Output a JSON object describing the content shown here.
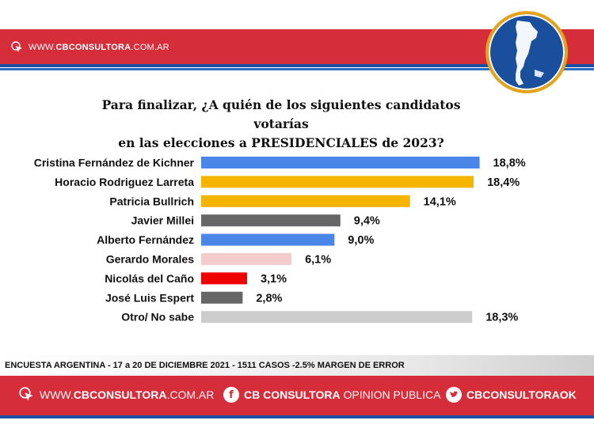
{
  "header": {
    "site_prefix": "WWW.",
    "site_bold": "CBCONSULTORA",
    "site_suffix": ".COM.AR"
  },
  "title": {
    "line1": "Para finalizar, ¿A quién de los siguientes candidatos votarías",
    "line2": "en las elecciones a PRESIDENCIALES  de 2023?"
  },
  "chart_data": {
    "type": "bar",
    "orientation": "horizontal",
    "categories": [
      "Cristina Fernández de Kichner",
      "Horacio Rodriguez Larreta",
      "Patricia Bullrich",
      "Javier Millei",
      "Alberto Fernández",
      "Gerardo Morales",
      "Nicolás del Caño",
      "José Luis Espert",
      "Otro/ No sabe"
    ],
    "values": [
      18.8,
      18.4,
      14.1,
      9.4,
      9.0,
      6.1,
      3.1,
      2.8,
      18.3
    ],
    "value_labels": [
      "18,8%",
      "18,4%",
      "14,1%",
      "9,4%",
      "9,0%",
      "6,1%",
      "3,1%",
      "2,8%",
      "18,3%"
    ],
    "colors": [
      "#4a86e8",
      "#f4b400",
      "#f4b400",
      "#666666",
      "#4a86e8",
      "#f4cccc",
      "#ee0000",
      "#666666",
      "#cccccc"
    ],
    "xlim": [
      0,
      20
    ],
    "grid": false,
    "legend": "none"
  },
  "footnote": "ENCUESTA ARGENTINA - 17 a 20 DE DICIEMBRE 2021 - 1511 CASOS -2.5% MARGEN DE ERROR",
  "footer": {
    "web_prefix": "WWW.",
    "web_bold": "CBCONSULTORA",
    "web_suffix": ".COM.AR",
    "facebook_bold": "CB CONSULTORA",
    "facebook_light": " OPINION PUBLICA",
    "twitter": "CBCONSULTORAOK",
    "icons": [
      "cursor-click-icon",
      "facebook-icon",
      "twitter-icon"
    ],
    "brand_color": "#d62d3a",
    "accent_color": "#1c4fa0"
  }
}
